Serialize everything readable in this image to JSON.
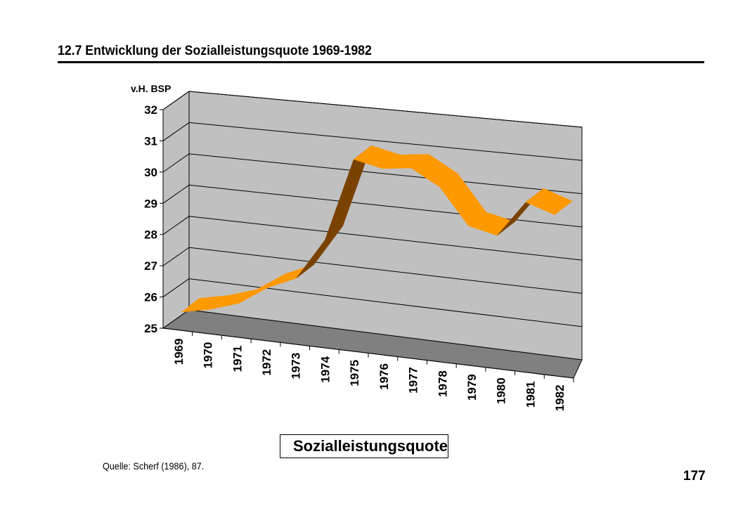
{
  "page": {
    "title": "12.7 Entwicklung der Sozialleistungsquote 1969-1982",
    "source": "Quelle: Scherf (1986), 87.",
    "page_number": "177"
  },
  "colors": {
    "ribbon_top": "#ff9900",
    "ribbon_side": "#7a4200",
    "wall": "#c0c0c0",
    "floor": "#808080",
    "grid": "#000000"
  },
  "chart_data": {
    "type": "line",
    "style": "3d-ribbon",
    "title": "",
    "ylabel": "v.H. BSP",
    "xlabel": "",
    "ylim": [
      25,
      32
    ],
    "yticks": [
      25,
      26,
      27,
      28,
      29,
      30,
      31,
      32
    ],
    "grid": true,
    "legend_position": "bottom",
    "categories": [
      "1969",
      "1970",
      "1971",
      "1972",
      "1973",
      "1974",
      "1975",
      "1976",
      "1977",
      "1978",
      "1979",
      "1980",
      "1981",
      "1982"
    ],
    "series": [
      {
        "name": "Sozialleistungsquote",
        "color": "#ff9900",
        "values": [
          25.5,
          25.7,
          26.0,
          26.6,
          27.0,
          28.3,
          30.9,
          30.7,
          30.8,
          30.3,
          29.2,
          29.0,
          30.1,
          29.8
        ]
      }
    ]
  }
}
